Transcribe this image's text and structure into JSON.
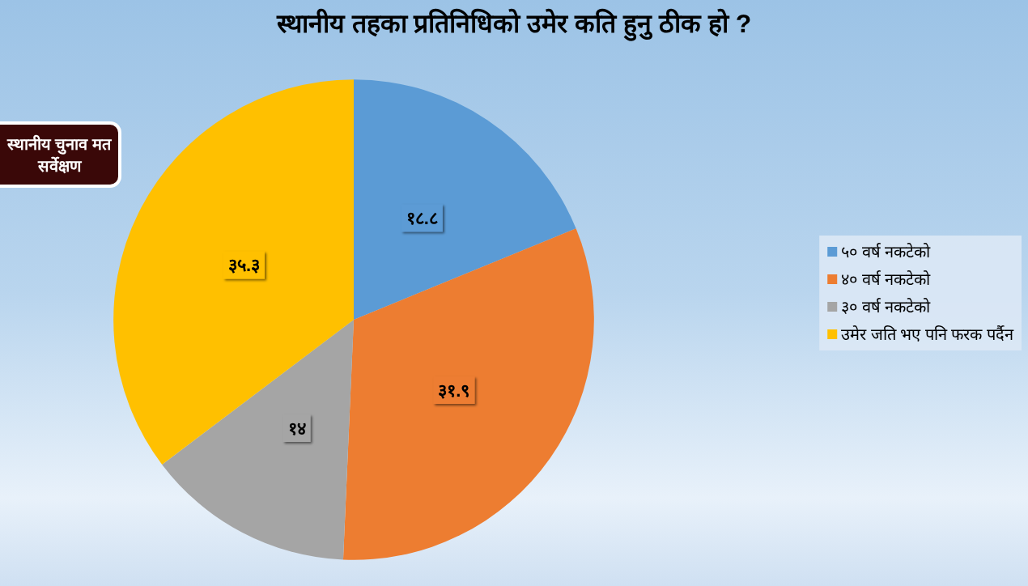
{
  "chart_data": {
    "type": "pie",
    "title": "स्थानीय तहका प्रतिनिधिको उमेर कति हुनु ठीक हो ?",
    "categories": [
      "५० वर्ष नकटेको",
      "४० वर्ष नकटेको",
      "३० वर्ष नकटेको",
      "उमेर जति भए पनि फरक पर्दैन"
    ],
    "values": [
      18.8,
      31.9,
      14,
      35.3
    ],
    "colors": [
      "#5b9bd5",
      "#ed7d31",
      "#a5a5a5",
      "#ffc000"
    ],
    "value_labels": [
      "१८.८",
      "३१.९",
      "१४",
      "३५.३"
    ],
    "legend": "right",
    "annotations": [
      "स्थानीय चुनाव मत सर्वेक्षण"
    ]
  }
}
